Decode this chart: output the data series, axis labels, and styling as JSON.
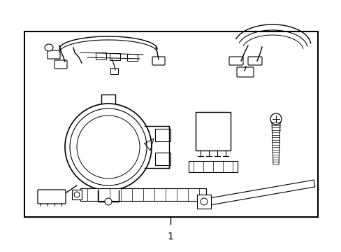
{
  "background_color": "#ffffff",
  "border_color": "#000000",
  "border_linewidth": 1.5,
  "label_text": "1",
  "label_fontsize": 10,
  "line_color": "#000000",
  "line_width": 1.0,
  "fig_width": 4.89,
  "fig_height": 3.6,
  "dpi": 100
}
